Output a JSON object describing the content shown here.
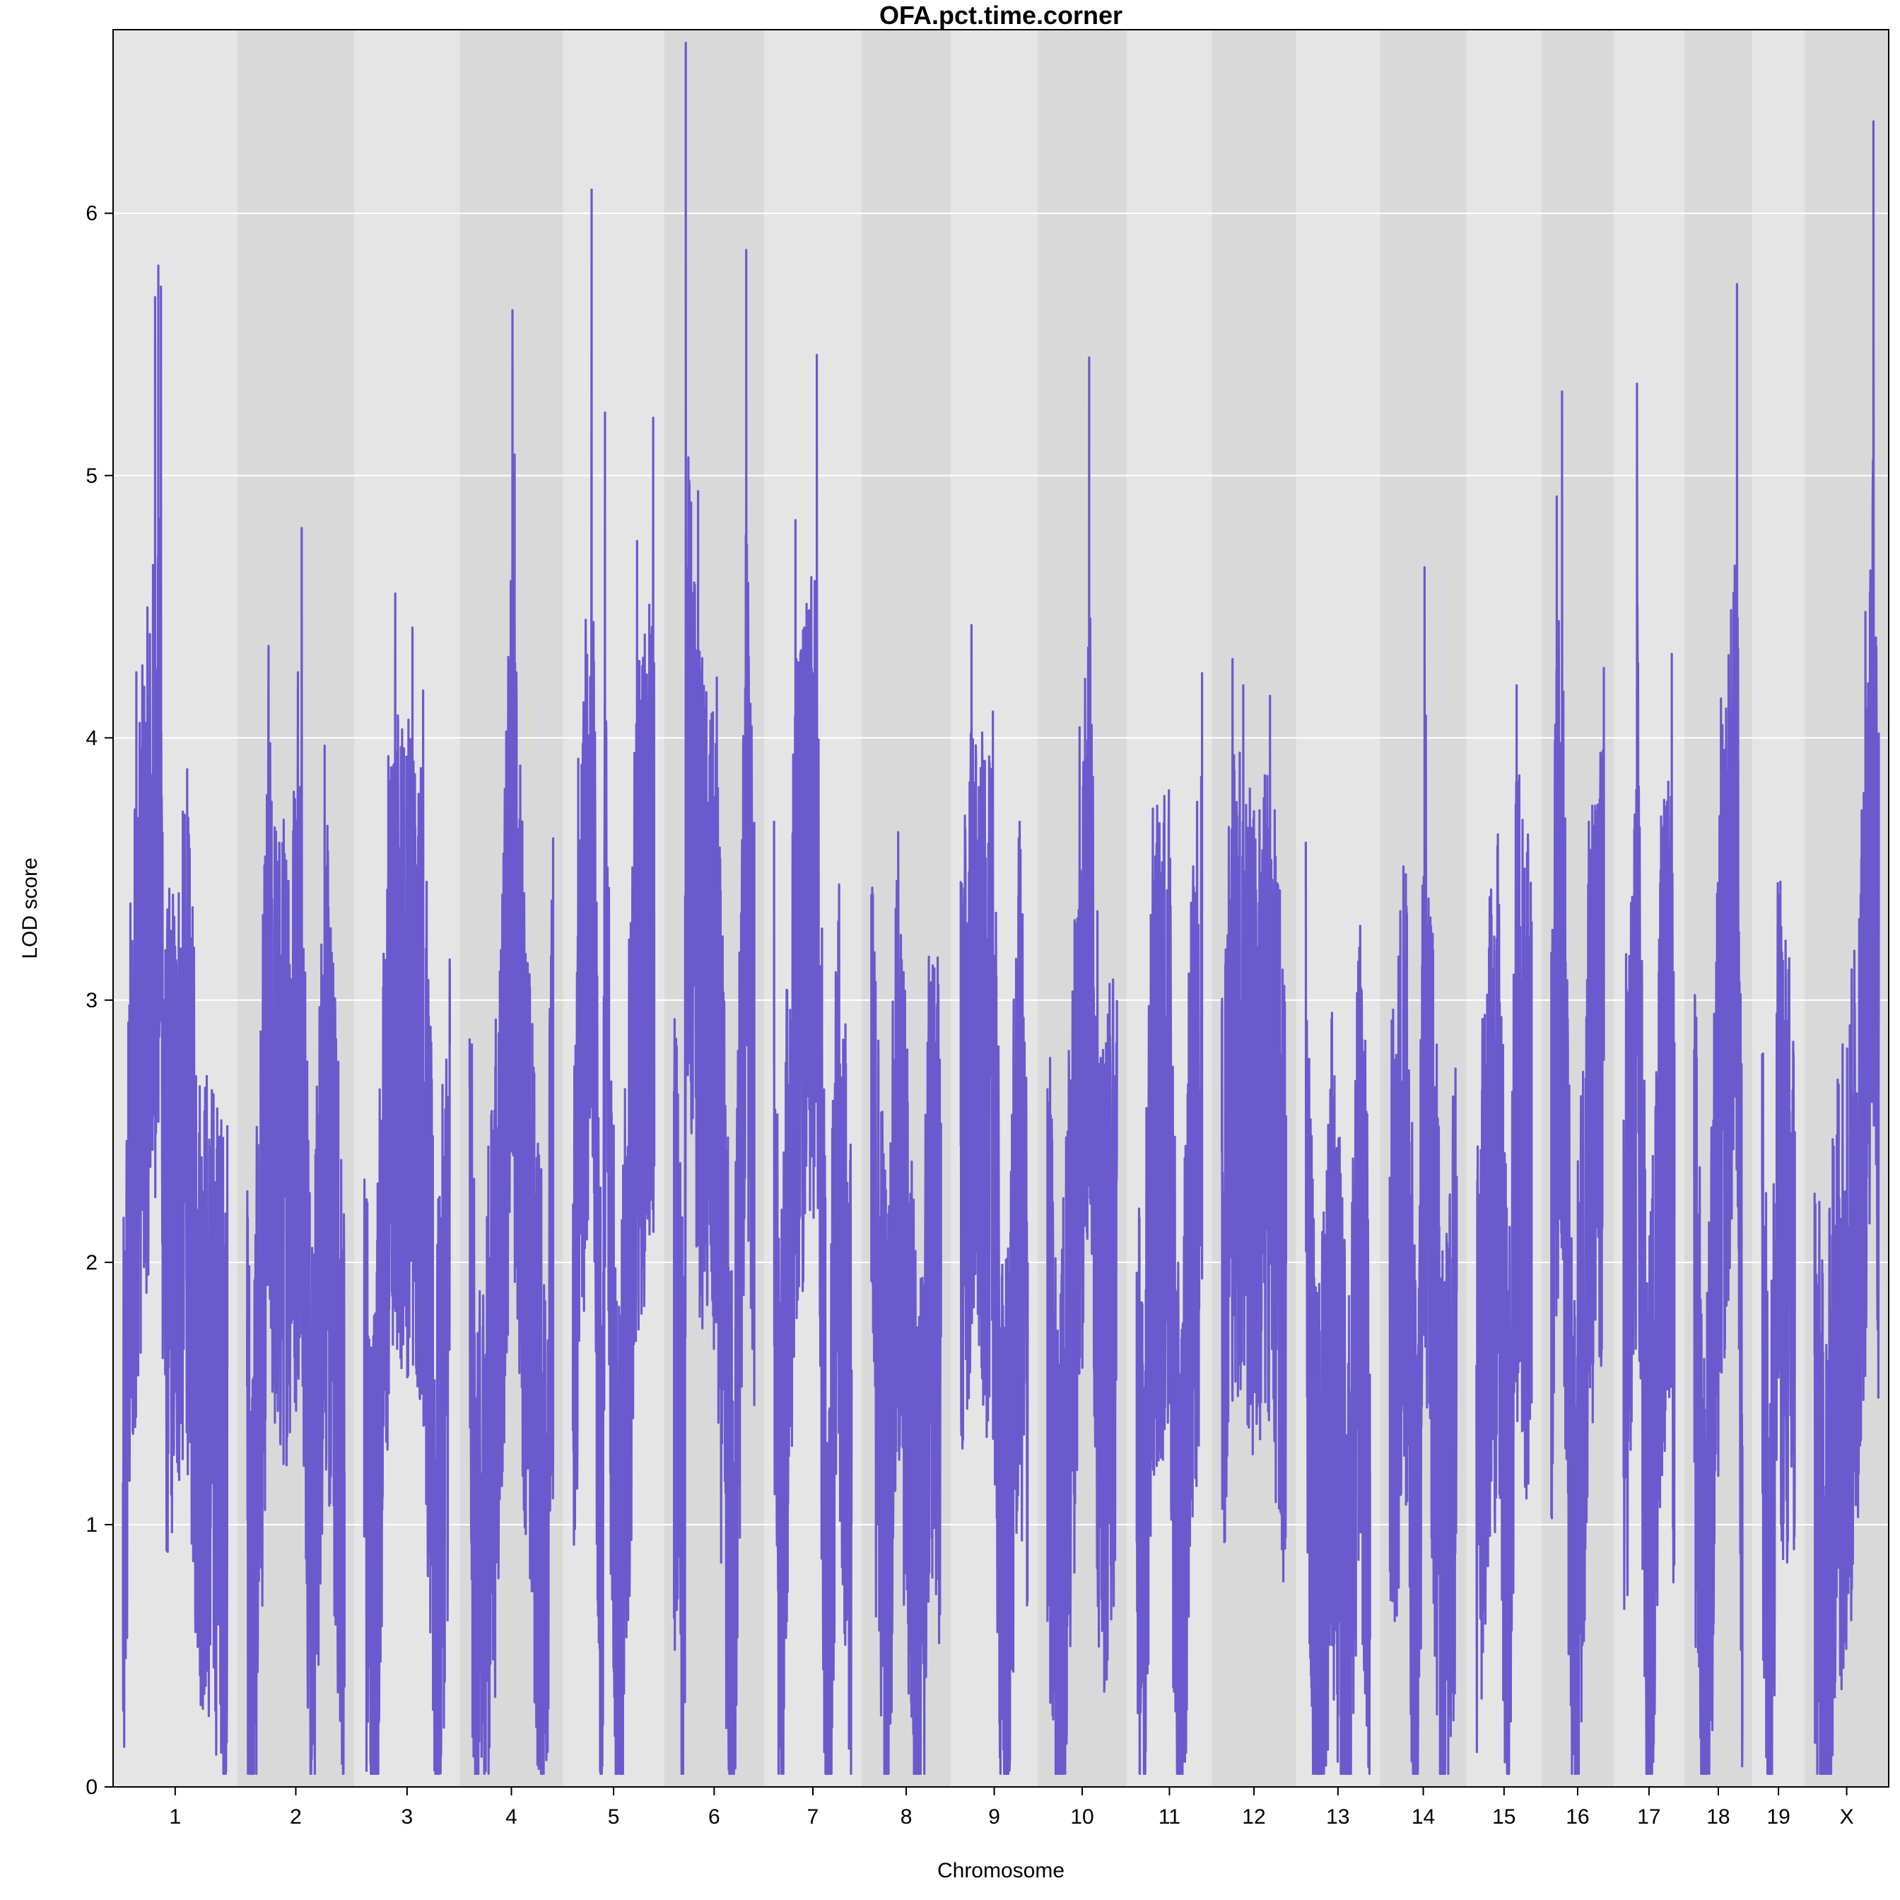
{
  "chart_data": {
    "type": "line",
    "title": "OFA.pct.time.corner",
    "xlabel": "Chromosome",
    "ylabel": "LOD score",
    "ylim": [
      0,
      6.7
    ],
    "yticks": [
      0,
      1,
      2,
      3,
      4,
      5,
      6
    ],
    "grid": true,
    "legend": "none",
    "line_color": "#6a5acd",
    "band_colors": [
      "#e5e5e5",
      "#d9d9d9"
    ],
    "chromosomes": [
      {
        "name": "1",
        "length": 195,
        "peaks": [
          [
            0,
            0.65
          ],
          [
            12,
            2.98
          ],
          [
            25,
            4.25
          ],
          [
            60,
            5.68
          ],
          [
            66,
            5.8
          ],
          [
            71,
            5.72
          ],
          [
            78,
            3.0
          ],
          [
            120,
            3.88
          ],
          [
            140,
            2.2
          ],
          [
            195,
            1.6
          ]
        ]
      },
      {
        "name": "2",
        "length": 182,
        "peaks": [
          [
            0,
            1.65
          ],
          [
            8,
            0.18
          ],
          [
            40,
            4.35
          ],
          [
            60,
            3.6
          ],
          [
            95,
            4.25
          ],
          [
            102,
            4.8
          ],
          [
            120,
            0.53
          ],
          [
            145,
            3.97
          ],
          [
            182,
            1.2
          ]
        ]
      },
      {
        "name": "3",
        "length": 160,
        "peaks": [
          [
            0,
            1.85
          ],
          [
            15,
            0.2
          ],
          [
            45,
            3.93
          ],
          [
            58,
            4.55
          ],
          [
            90,
            4.42
          ],
          [
            110,
            4.18
          ],
          [
            135,
            0.7
          ],
          [
            160,
            3.12
          ]
        ]
      },
      {
        "name": "4",
        "length": 156,
        "peaks": [
          [
            0,
            2.85
          ],
          [
            15,
            0.12
          ],
          [
            50,
            2.4
          ],
          [
            80,
            5.63
          ],
          [
            84,
            5.08
          ],
          [
            110,
            2.8
          ],
          [
            140,
            0.85
          ],
          [
            156,
            3.62
          ]
        ]
      },
      {
        "name": "5",
        "length": 152,
        "peaks": [
          [
            0,
            1.55
          ],
          [
            10,
            3.92
          ],
          [
            35,
            6.09
          ],
          [
            55,
            0.08
          ],
          [
            60,
            5.24
          ],
          [
            85,
            0.17
          ],
          [
            120,
            4.75
          ],
          [
            150,
            5.22
          ]
        ]
      },
      {
        "name": "6",
        "length": 150,
        "peaks": [
          [
            0,
            2.65
          ],
          [
            20,
            0.95
          ],
          [
            22,
            6.65
          ],
          [
            45,
            4.94
          ],
          [
            80,
            4.23
          ],
          [
            110,
            0.32
          ],
          [
            135,
            5.86
          ],
          [
            150,
            3.68
          ]
        ]
      },
      {
        "name": "7",
        "length": 145,
        "peaks": [
          [
            0,
            3.68
          ],
          [
            10,
            0.55
          ],
          [
            40,
            4.83
          ],
          [
            80,
            5.46
          ],
          [
            100,
            0.25
          ],
          [
            120,
            3.3
          ],
          [
            145,
            1.48
          ]
        ]
      },
      {
        "name": "8",
        "length": 130,
        "peaks": [
          [
            0,
            3.4
          ],
          [
            30,
            1.1
          ],
          [
            50,
            3.64
          ],
          [
            90,
            0.28
          ],
          [
            110,
            3.05
          ],
          [
            130,
            2.53
          ]
        ]
      },
      {
        "name": "9",
        "length": 125,
        "peaks": [
          [
            0,
            3.45
          ],
          [
            20,
            4.43
          ],
          [
            40,
            4.02
          ],
          [
            60,
            4.1
          ],
          [
            80,
            0.22
          ],
          [
            110,
            3.68
          ],
          [
            125,
            2.0
          ]
        ]
      },
      {
        "name": "10",
        "length": 130,
        "peaks": [
          [
            0,
            2.66
          ],
          [
            20,
            0.2
          ],
          [
            60,
            4.04
          ],
          [
            78,
            5.45
          ],
          [
            100,
            1.96
          ],
          [
            130,
            3.0
          ]
        ]
      },
      {
        "name": "11",
        "length": 122,
        "peaks": [
          [
            0,
            1.96
          ],
          [
            10,
            0.4
          ],
          [
            30,
            3.73
          ],
          [
            60,
            3.8
          ],
          [
            80,
            0.05
          ],
          [
            100,
            3.06
          ],
          [
            122,
            4.25
          ]
        ]
      },
      {
        "name": "12",
        "length": 120,
        "peaks": [
          [
            0,
            2.95
          ],
          [
            20,
            4.3
          ],
          [
            40,
            4.2
          ],
          [
            60,
            3.72
          ],
          [
            90,
            4.16
          ],
          [
            120,
            2.56
          ]
        ]
      },
      {
        "name": "13",
        "length": 120,
        "peaks": [
          [
            0,
            3.6
          ],
          [
            20,
            0.35
          ],
          [
            50,
            2.37
          ],
          [
            80,
            0.3
          ],
          [
            100,
            3.2
          ],
          [
            120,
            1.2
          ]
        ]
      },
      {
        "name": "14",
        "length": 125,
        "peaks": [
          [
            0,
            2.28
          ],
          [
            30,
            3.48
          ],
          [
            50,
            0.09
          ],
          [
            65,
            4.65
          ],
          [
            100,
            0.7
          ],
          [
            125,
            2.33
          ]
        ]
      },
      {
        "name": "15",
        "length": 103,
        "peaks": [
          [
            0,
            1.45
          ],
          [
            20,
            3.02
          ],
          [
            40,
            3.52
          ],
          [
            60,
            0.5
          ],
          [
            75,
            4.2
          ],
          [
            103,
            3.3
          ]
        ]
      },
      {
        "name": "16",
        "length": 98,
        "peaks": [
          [
            0,
            3.18
          ],
          [
            10,
            4.92
          ],
          [
            20,
            5.32
          ],
          [
            40,
            0.15
          ],
          [
            70,
            3.68
          ],
          [
            98,
            4.27
          ]
        ]
      },
      {
        "name": "17",
        "length": 95,
        "peaks": [
          [
            0,
            2.54
          ],
          [
            20,
            3.65
          ],
          [
            25,
            5.35
          ],
          [
            45,
            0.3
          ],
          [
            70,
            3.7
          ],
          [
            90,
            4.32
          ],
          [
            95,
            2.2
          ]
        ]
      },
      {
        "name": "18",
        "length": 90,
        "peaks": [
          [
            0,
            2.81
          ],
          [
            20,
            0.08
          ],
          [
            50,
            4.15
          ],
          [
            80,
            5.73
          ],
          [
            90,
            1.3
          ]
        ]
      },
      {
        "name": "19",
        "length": 61,
        "peaks": [
          [
            0,
            2.32
          ],
          [
            15,
            0.08
          ],
          [
            30,
            3.4
          ],
          [
            61,
            2.5
          ]
        ]
      },
      {
        "name": "X",
        "length": 120,
        "peaks": [
          [
            0,
            1.65
          ],
          [
            20,
            0.22
          ],
          [
            40,
            2.14
          ],
          [
            70,
            2.64
          ],
          [
            95,
            4.48
          ],
          [
            110,
            6.35
          ],
          [
            120,
            4.02
          ]
        ]
      }
    ]
  }
}
